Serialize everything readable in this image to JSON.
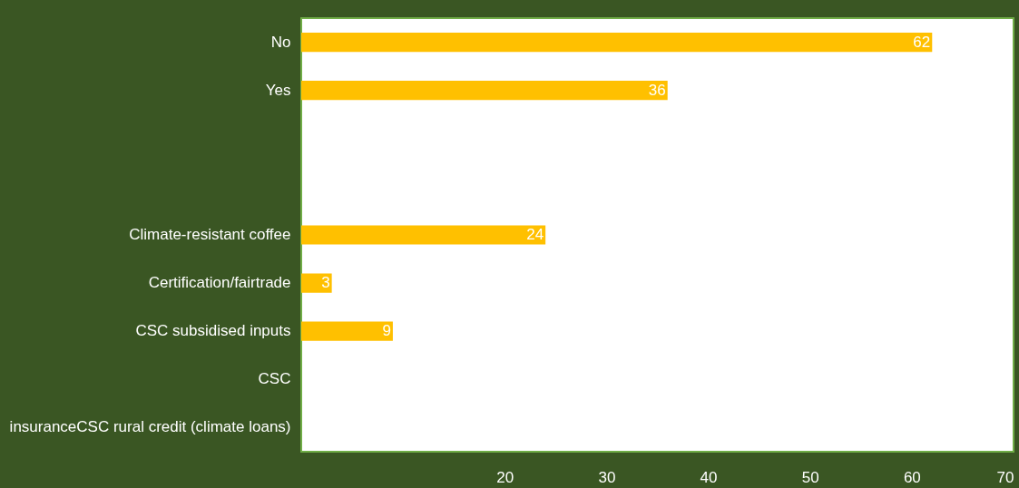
{
  "chart_data": {
    "type": "bar",
    "orientation": "horizontal",
    "categories": [
      "No",
      "Yes",
      null,
      null,
      "Climate-resistant coffee",
      "Certification/fairtrade",
      "CSC subsidised inputs",
      "CSC",
      "insuranceCSC rural credit (climate loans)"
    ],
    "values": [
      62,
      36,
      null,
      null,
      24,
      3,
      9,
      null,
      null
    ],
    "color": "#ffc000",
    "data_labels": true,
    "xlim": [
      0,
      70
    ],
    "xticks": [
      20,
      30,
      40,
      50,
      60,
      70
    ],
    "grid": false
  }
}
